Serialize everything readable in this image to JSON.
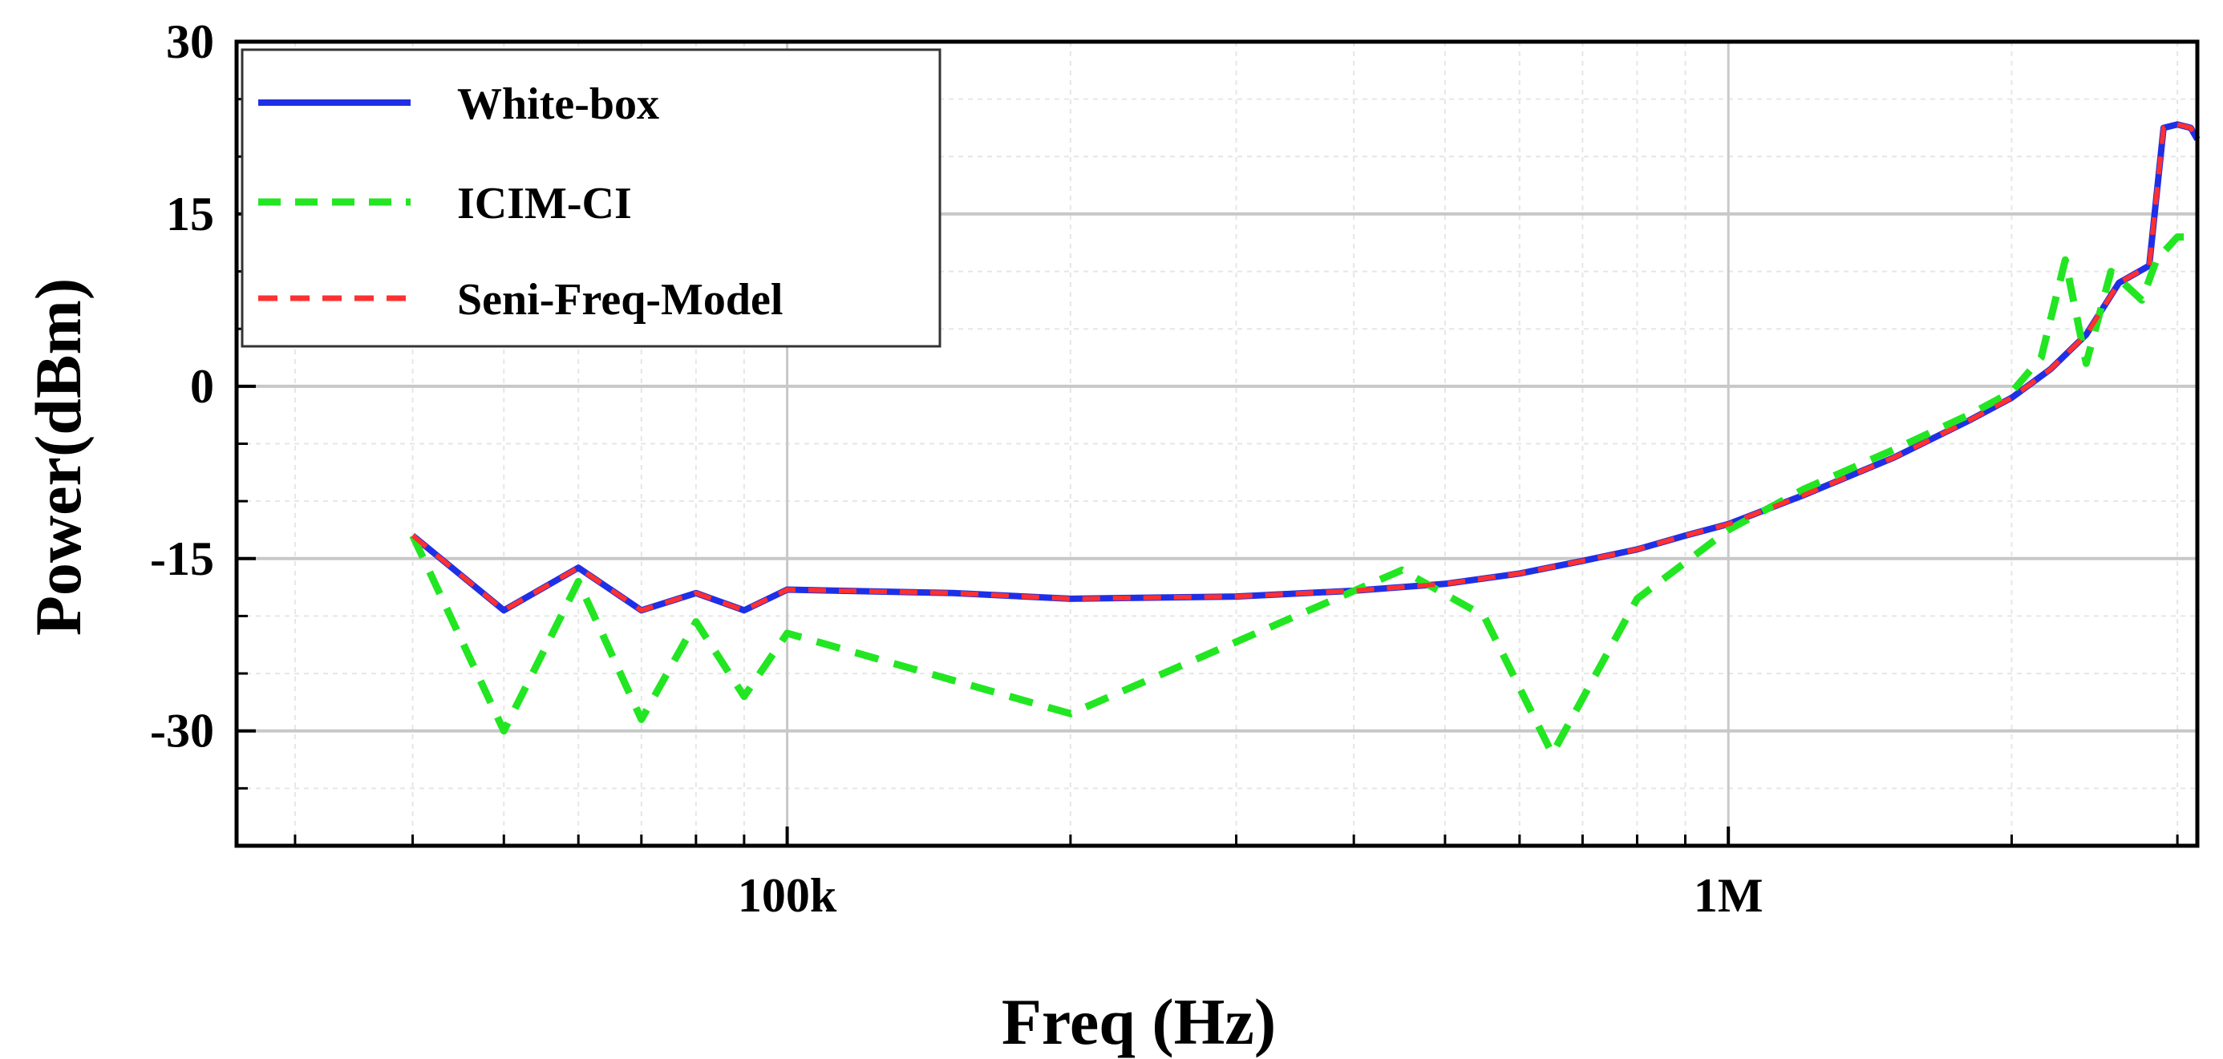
{
  "chart_data": {
    "type": "line",
    "xscale": "log",
    "xlabel": "Freq (Hz)",
    "ylabel": "Power(dBm)",
    "xlim": [
      26000,
      3150000
    ],
    "ylim": [
      -40,
      30
    ],
    "xticks": [
      {
        "value": 100000,
        "label": "100k"
      },
      {
        "value": 1000000,
        "label": "1M"
      }
    ],
    "yticks": [
      {
        "value": 30,
        "label": "30"
      },
      {
        "value": 15,
        "label": "15"
      },
      {
        "value": 0,
        "label": "0"
      },
      {
        "value": -15,
        "label": "-15"
      },
      {
        "value": -30,
        "label": "-30"
      }
    ],
    "grid": true,
    "legend_position": "top-left",
    "series": [
      {
        "name": "White-box",
        "color": "#1f2fe6",
        "style": "solid",
        "x": [
          40000,
          50000,
          60000,
          70000,
          80000,
          90000,
          100000,
          150000,
          200000,
          300000,
          400000,
          500000,
          600000,
          700000,
          800000,
          900000,
          1000000,
          1200000,
          1500000,
          1800000,
          2000000,
          2200000,
          2400000,
          2600000,
          2800000,
          2900000,
          3000000,
          3100000,
          3150000
        ],
        "y": [
          -13,
          -19.5,
          -15.8,
          -19.5,
          -18,
          -19.5,
          -17.7,
          -18,
          -18.5,
          -18.3,
          -17.8,
          -17.2,
          -16.3,
          -15.2,
          -14.2,
          -13,
          -12,
          -9.5,
          -6.2,
          -3,
          -1,
          1.5,
          4.5,
          9,
          10.5,
          22.5,
          22.8,
          22.5,
          21.5
        ]
      },
      {
        "name": "ICIM-CI",
        "color": "#22e622",
        "style": "dashed",
        "x": [
          40000,
          50000,
          60000,
          70000,
          80000,
          90000,
          100000,
          200000,
          450000,
          550000,
          650000,
          800000,
          1000000,
          1200000,
          1500000,
          1800000,
          2000000,
          2150000,
          2280000,
          2400000,
          2550000,
          2750000,
          2850000,
          3000000,
          3150000
        ],
        "y": [
          -13,
          -30,
          -17,
          -29,
          -20.5,
          -27,
          -21.5,
          -28.5,
          -16,
          -20,
          -32,
          -18.5,
          -12.5,
          -9,
          -5.5,
          -2.5,
          -0.5,
          2.5,
          11,
          2,
          10,
          7.5,
          11,
          13,
          13
        ]
      },
      {
        "name": "Seni-Freq-Model",
        "color": "#ff3030",
        "style": "dashed",
        "x": [
          40000,
          50000,
          60000,
          70000,
          80000,
          90000,
          100000,
          150000,
          200000,
          300000,
          400000,
          500000,
          600000,
          700000,
          800000,
          900000,
          1000000,
          1200000,
          1500000,
          1800000,
          2000000,
          2200000,
          2400000,
          2600000,
          2800000,
          2900000,
          3000000,
          3100000,
          3150000
        ],
        "y": [
          -13,
          -19.5,
          -15.8,
          -19.5,
          -18,
          -19.5,
          -17.7,
          -18,
          -18.5,
          -18.3,
          -17.8,
          -17.2,
          -16.3,
          -15.2,
          -14.2,
          -13,
          -12,
          -9.5,
          -6.2,
          -3,
          -1,
          1.5,
          4.5,
          9,
          10.5,
          22.5,
          22.8,
          22.5,
          21.5
        ]
      }
    ]
  }
}
